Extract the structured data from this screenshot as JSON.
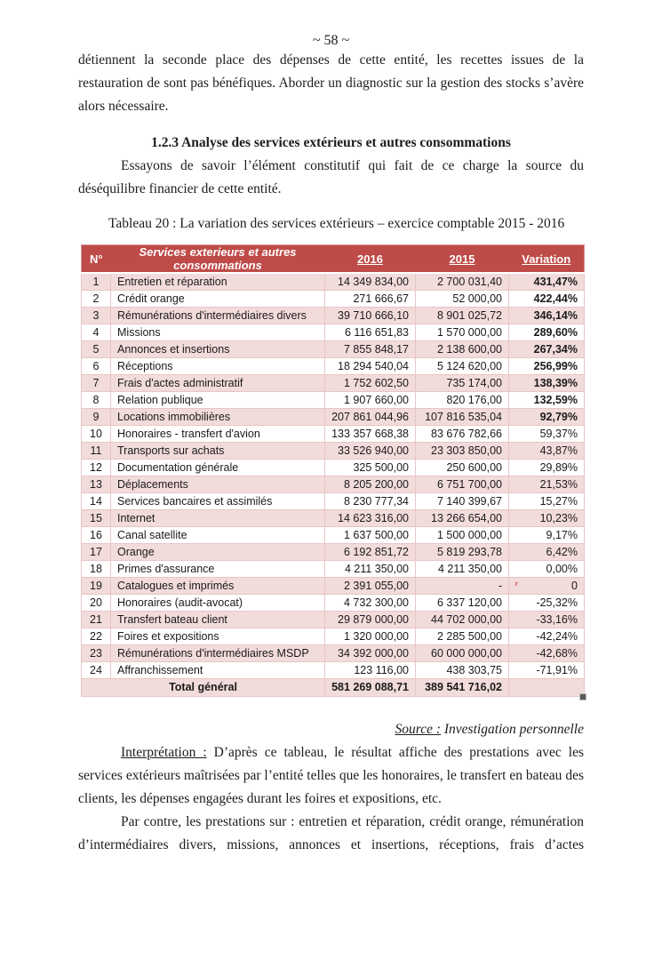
{
  "page_number": "~ 58 ~",
  "paragraph_1": "détiennent la seconde place des dépenses de cette entité, les recettes issues de la restauration de sont pas bénéfiques. Aborder un diagnostic sur la gestion des stocks s’avère alors nécessaire.",
  "heading": "1.2.3 Analyse des services extérieurs et autres consommations",
  "paragraph_2": "Essayons de savoir l’élément constitutif qui fait de ce charge la source du déséquilibre financier de cette entité.",
  "table_caption": "Tableau 20 : La variation des services extérieurs – exercice comptable 2015 - 2016",
  "table": {
    "columns": [
      "N°",
      "Services exterieurs et autres consommations",
      "2016",
      "2015",
      "Variation"
    ],
    "rows": [
      {
        "n": "1",
        "label": "Entretien et réparation",
        "y2016": "14 349 834,00",
        "y2015": "2 700 031,40",
        "variation": "431,47%",
        "bold": true,
        "mark": false
      },
      {
        "n": "2",
        "label": "Crédit orange",
        "y2016": "271 666,67",
        "y2015": "52 000,00",
        "variation": "422,44%",
        "bold": true,
        "mark": false
      },
      {
        "n": "3",
        "label": "Rémunérations d'intermédiaires divers",
        "y2016": "39 710 666,10",
        "y2015": "8 901 025,72",
        "variation": "346,14%",
        "bold": true,
        "mark": false
      },
      {
        "n": "4",
        "label": "Missions",
        "y2016": "6 116 651,83",
        "y2015": "1 570 000,00",
        "variation": "289,60%",
        "bold": true,
        "mark": false
      },
      {
        "n": "5",
        "label": "Annonces et insertions",
        "y2016": "7 855 848,17",
        "y2015": "2 138 600,00",
        "variation": "267,34%",
        "bold": true,
        "mark": false
      },
      {
        "n": "6",
        "label": "Réceptions",
        "y2016": "18 294 540,04",
        "y2015": "5 124 620,00",
        "variation": "256,99%",
        "bold": true,
        "mark": false
      },
      {
        "n": "7",
        "label": "Frais d'actes administratif",
        "y2016": "1 752 602,50",
        "y2015": "735 174,00",
        "variation": "138,39%",
        "bold": true,
        "mark": false
      },
      {
        "n": "8",
        "label": "Relation publique",
        "y2016": "1 907 660,00",
        "y2015": "820 176,00",
        "variation": "132,59%",
        "bold": true,
        "mark": false
      },
      {
        "n": "9",
        "label": "Locations immobilières",
        "y2016": "207 861 044,96",
        "y2015": "107 816 535,04",
        "variation": "92,79%",
        "bold": true,
        "mark": false
      },
      {
        "n": "10",
        "label": "Honoraires - transfert d'avion",
        "y2016": "133 357 668,38",
        "y2015": "83 676 782,66",
        "variation": "59,37%",
        "bold": false,
        "mark": false
      },
      {
        "n": "11",
        "label": "Transports sur achats",
        "y2016": "33 526 940,00",
        "y2015": "23 303 850,00",
        "variation": "43,87%",
        "bold": false,
        "mark": false
      },
      {
        "n": "12",
        "label": "Documentation générale",
        "y2016": "325 500,00",
        "y2015": "250 600,00",
        "variation": "29,89%",
        "bold": false,
        "mark": false
      },
      {
        "n": "13",
        "label": "Déplacements",
        "y2016": "8 205 200,00",
        "y2015": "6 751 700,00",
        "variation": "21,53%",
        "bold": false,
        "mark": false
      },
      {
        "n": "14",
        "label": "Services bancaires et assimilés",
        "y2016": "8 230 777,34",
        "y2015": "7 140 399,67",
        "variation": "15,27%",
        "bold": false,
        "mark": false
      },
      {
        "n": "15",
        "label": "Internet",
        "y2016": "14 623 316,00",
        "y2015": "13 266 654,00",
        "variation": "10,23%",
        "bold": false,
        "mark": false
      },
      {
        "n": "16",
        "label": "Canal satellite",
        "y2016": "1 637 500,00",
        "y2015": "1 500 000,00",
        "variation": "9,17%",
        "bold": false,
        "mark": false
      },
      {
        "n": "17",
        "label": "Orange",
        "y2016": "6 192 851,72",
        "y2015": "5 819 293,78",
        "variation": "6,42%",
        "bold": false,
        "mark": false
      },
      {
        "n": "18",
        "label": "Primes d'assurance",
        "y2016": "4 211 350,00",
        "y2015": "4 211 350,00",
        "variation": "0,00%",
        "bold": false,
        "mark": false
      },
      {
        "n": "19",
        "label": "Catalogues et imprimés",
        "y2016": "2 391 055,00",
        "y2015": "-",
        "variation": "0",
        "bold": false,
        "mark": true
      },
      {
        "n": "20",
        "label": "Honoraires (audit-avocat)",
        "y2016": "4 732 300,00",
        "y2015": "6 337 120,00",
        "variation": "-25,32%",
        "bold": false,
        "mark": false
      },
      {
        "n": "21",
        "label": "Transfert bateau client",
        "y2016": "29 879 000,00",
        "y2015": "44 702 000,00",
        "variation": "-33,16%",
        "bold": false,
        "mark": false
      },
      {
        "n": "22",
        "label": "Foires et expositions",
        "y2016": "1 320 000,00",
        "y2015": "2 285 500,00",
        "variation": "-42,24%",
        "bold": false,
        "mark": false
      },
      {
        "n": "23",
        "label": "Rémunérations d'intermédiaires MSDP",
        "y2016": "34 392 000,00",
        "y2015": "60 000 000,00",
        "variation": "-42,68%",
        "bold": false,
        "mark": false
      },
      {
        "n": "24",
        "label": "Affranchissement",
        "y2016": "123 116,00",
        "y2015": "438 303,75",
        "variation": "-71,91%",
        "bold": false,
        "mark": false
      }
    ],
    "total": {
      "label": "Total général",
      "y2016": "581 269 088,71",
      "y2015": "389 541 716,02",
      "variation": ""
    }
  },
  "source": {
    "label": "Source :",
    "text": " Investigation personnelle"
  },
  "interpretation": {
    "label": "Interprétation :",
    "text": " D’après ce tableau, le résultat affiche des prestations avec les services extérieurs maîtrisées par l’entité telles que les honoraires, le transfert en bateau des clients, les dépenses engagées durant les foires et expositions, etc."
  },
  "paragraph_3": "Par contre, les prestations sur : entretien et réparation, crédit orange, rémunération d’intermédiaires divers, missions, annonces et insertions, réceptions, frais d’actes",
  "colors": {
    "table_header_bg": "#be4b48",
    "table_header_text": "#ffffff",
    "table_band_bg": "#f2dcdb",
    "table_border": "#e8c6c4",
    "comment_mark": "#c00000"
  }
}
